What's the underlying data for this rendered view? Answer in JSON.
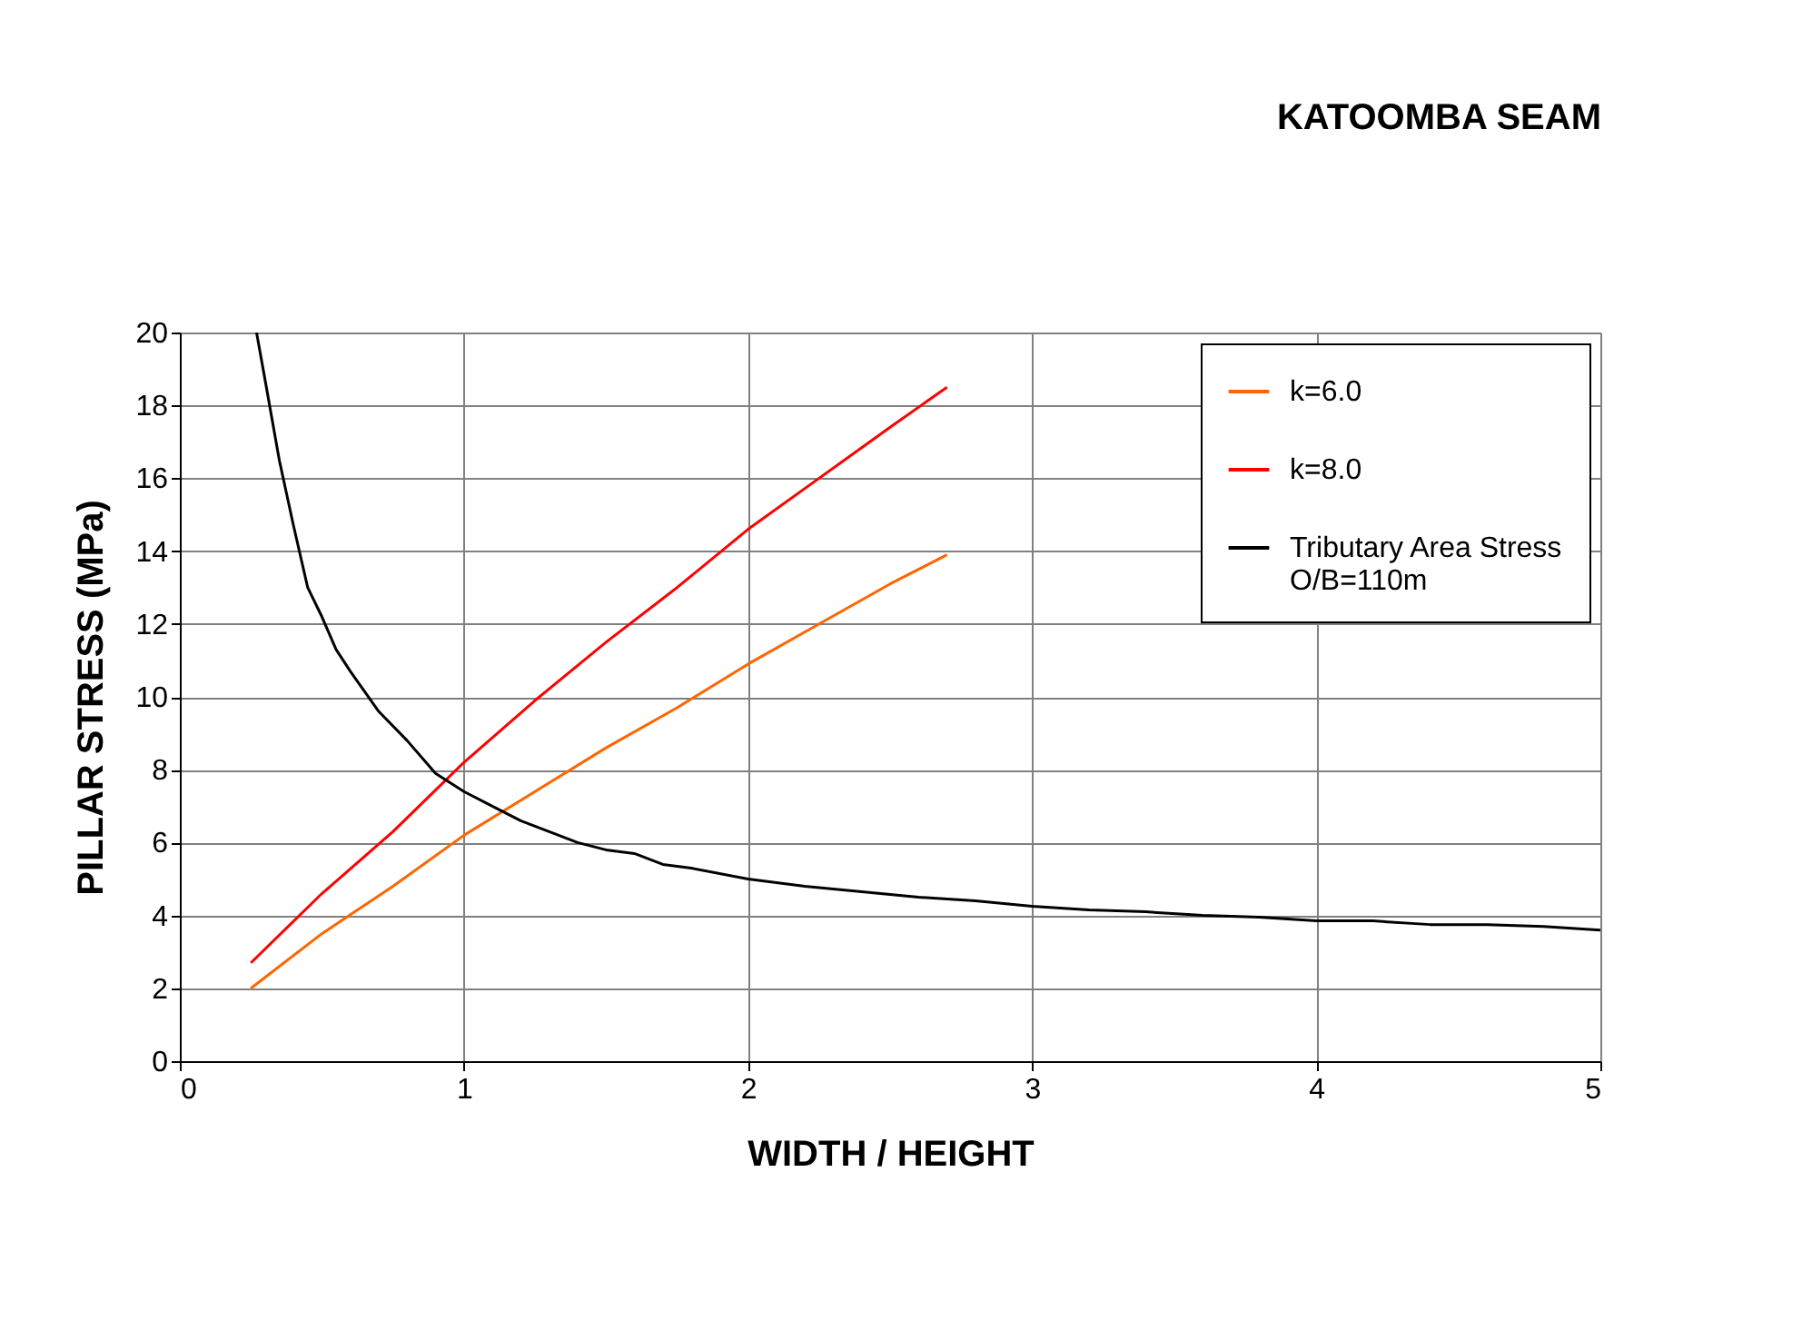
{
  "chart_data": {
    "type": "line",
    "title": "KATOOMBA SEAM",
    "xlabel": "WIDTH / HEIGHT",
    "ylabel": "PILLAR STRESS  (MPa)",
    "xlim": [
      0,
      5
    ],
    "xticks": [
      0,
      1,
      2,
      3,
      4,
      5
    ],
    "ylim": [
      0,
      20
    ],
    "yticks": [
      0,
      2,
      4,
      6,
      8,
      10,
      12,
      14,
      16,
      18,
      20
    ],
    "grid": true,
    "legend": "top right",
    "marker": "none",
    "line_style": "solid",
    "series": [
      {
        "name": "k=6.0",
        "color": "#ff6600",
        "x": [
          0.25,
          0.5,
          0.75,
          1.0,
          1.25,
          1.5,
          1.75,
          2.0,
          2.25,
          2.5,
          2.7
        ],
        "values": [
          2.0,
          3.5,
          4.8,
          6.2,
          7.4,
          8.6,
          9.7,
          10.9,
          12.0,
          13.1,
          13.9
        ]
      },
      {
        "name": "k=8.0",
        "color": "#ff0000",
        "x": [
          0.25,
          0.5,
          0.75,
          1.0,
          1.25,
          1.5,
          1.75,
          2.0,
          2.25,
          2.5,
          2.7
        ],
        "values": [
          2.7,
          4.6,
          6.3,
          8.2,
          9.9,
          11.5,
          13.0,
          14.6,
          16.0,
          17.4,
          18.5
        ]
      },
      {
        "name": "Tributary Area Stress\nO/B=110m",
        "color": "#000000",
        "x": [
          0.27,
          0.3,
          0.35,
          0.4,
          0.45,
          0.5,
          0.55,
          0.6,
          0.7,
          0.8,
          0.9,
          1.0,
          1.1,
          1.2,
          1.3,
          1.4,
          1.5,
          1.6,
          1.7,
          1.8,
          2.0,
          2.2,
          2.4,
          2.6,
          2.8,
          3.0,
          3.2,
          3.4,
          3.6,
          3.8,
          4.0,
          4.2,
          4.4,
          4.6,
          4.8,
          5.0
        ],
        "values": [
          20.0,
          18.7,
          16.5,
          14.7,
          13.0,
          12.2,
          11.3,
          10.7,
          9.6,
          8.8,
          7.9,
          7.4,
          7.0,
          6.6,
          6.3,
          6.0,
          5.8,
          5.7,
          5.4,
          5.3,
          5.0,
          4.8,
          4.65,
          4.5,
          4.4,
          4.25,
          4.15,
          4.1,
          4.0,
          3.95,
          3.85,
          3.85,
          3.75,
          3.75,
          3.7,
          3.6
        ]
      }
    ]
  }
}
